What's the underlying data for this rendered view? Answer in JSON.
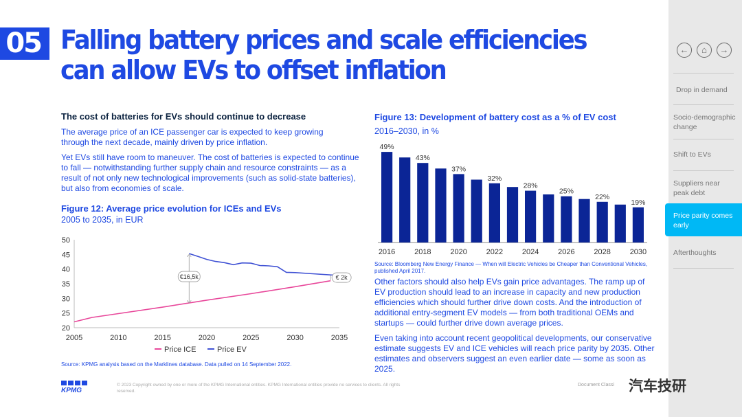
{
  "section_number": "05",
  "title": "Falling battery prices and scale efficiencies can allow EVs to offset inflation",
  "left": {
    "heading": "The cost of batteries for EVs should continue to decrease",
    "para1": "The average price of an ICE passenger car is expected to keep growing through the next decade, mainly driven by price inflation.",
    "para2": "Yet EVs still have room to maneuver. The cost of batteries is expected to continue to fall — notwithstanding further supply chain and resource constraints — as a result of not only new technological improvements (such as solid-state batteries), but also from economies of scale."
  },
  "right": {
    "para1": "Other factors should also help EVs gain price advantages. The ramp up of EV production should lead to an increase in capacity and new production efficiencies which should further drive down costs. And the introduction of additional entry-segment EV models — from both traditional OEMs and startups — could further drive down average prices.",
    "para2": "Even taking into account recent geopolitical developments, our conservative estimate suggests EV and ICE vehicles will reach price parity by 2035. Other estimates and observers suggest an even earlier date — some as soon as 2025."
  },
  "nav": {
    "prev_icon": "arrow-left-icon",
    "home_icon": "home-icon",
    "next_icon": "arrow-right-icon",
    "items": [
      {
        "label": "Drop in demand",
        "active": false
      },
      {
        "label": "Socio-demographic change",
        "active": false
      },
      {
        "label": "Shift to EVs",
        "active": false
      },
      {
        "label": "Suppliers near peak debt",
        "active": false
      },
      {
        "label": "Price parity comes early",
        "active": true
      },
      {
        "label": "Afterthoughts",
        "active": false
      }
    ]
  },
  "footer": {
    "copyright": "© 2023 Copyright owned by one or more of the KPMG International entities. KPMG International entities provide no services to clients. All rights reserved.",
    "logo_text": "KPMG",
    "doc_class": "Document Classi",
    "watermark": "汽车技研"
  },
  "colors": {
    "accent": "#1e49e2",
    "bar": "#0b2596",
    "ice_line": "#e8479a",
    "ev_line": "#3f51d4",
    "active_nav": "#00b8f5"
  },
  "chart_data": [
    {
      "type": "line",
      "title": "Figure 12: Average price evolution for ICEs and EVs",
      "subtitle": "2005 to 2035, in EUR",
      "xlabel": "",
      "ylabel": "",
      "xlim": [
        2005,
        2035
      ],
      "ylim": [
        20,
        50
      ],
      "x_ticks": [
        2005,
        2010,
        2015,
        2020,
        2025,
        2030,
        2035
      ],
      "y_ticks": [
        20,
        25,
        30,
        35,
        40,
        45,
        50
      ],
      "grid": false,
      "legend_position": "bottom",
      "series": [
        {
          "name": "Price ICE",
          "x": [
            2005,
            2007,
            2010,
            2015,
            2020,
            2025,
            2030,
            2034
          ],
          "y": [
            22.0,
            23.5,
            24.8,
            27.0,
            29.4,
            31.6,
            34.0,
            36.0
          ]
        },
        {
          "name": "Price EV",
          "x": [
            2018,
            2019,
            2020,
            2021,
            2022,
            2023,
            2024,
            2025,
            2026,
            2027,
            2028,
            2029,
            2030,
            2032,
            2034,
            2035
          ],
          "y": [
            45.3,
            44.3,
            43.3,
            42.6,
            42.2,
            41.5,
            42.1,
            42.0,
            41.2,
            41.1,
            40.8,
            38.9,
            38.8,
            38.4,
            38.0,
            37.9
          ]
        }
      ],
      "annotations": [
        "€16,5k",
        "€ 2k"
      ],
      "source": "Source: KPMG analysis based on the Marklines database. Data pulled on 14 September 2022."
    },
    {
      "type": "bar",
      "title": "Figure 13: Development of battery cost as a % of EV cost",
      "subtitle": "2016–2030, in %",
      "xlabel": "",
      "ylabel": "",
      "ylim": [
        0,
        52
      ],
      "categories": [
        "2016",
        "2017",
        "2018",
        "2019",
        "2020",
        "2021",
        "2022",
        "2023",
        "2024",
        "2025",
        "2026",
        "2027",
        "2028",
        "2029",
        "2030"
      ],
      "x_tick_labels": [
        "2016",
        "2018",
        "2020",
        "2022",
        "2024",
        "2026",
        "2028",
        "2030"
      ],
      "values": [
        49,
        46,
        43,
        40,
        37,
        34,
        32,
        30,
        28,
        26,
        25,
        23.5,
        22,
        20.5,
        19
      ],
      "data_labels": [
        "49%",
        "",
        "43%",
        "",
        "37%",
        "",
        "32%",
        "",
        "28%",
        "",
        "25%",
        "",
        "22%",
        "",
        "19%"
      ],
      "grid": false,
      "source": "Source: Bloomberg New Energy Finance — When will Electric Vehicles be Cheaper than Conventional Vehicles, published April 2017."
    }
  ]
}
